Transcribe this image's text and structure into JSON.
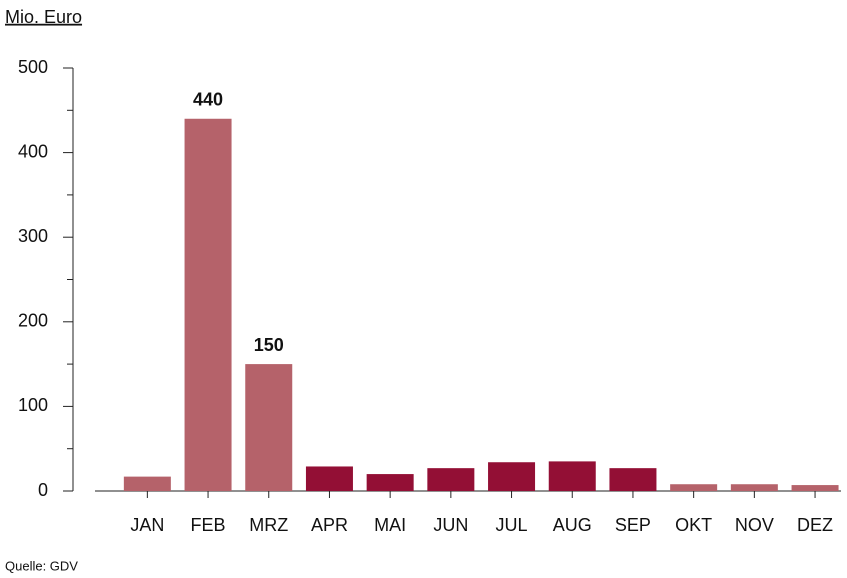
{
  "chart_data": {
    "type": "bar",
    "y_axis_label": "Mio. Euro",
    "source": "Quelle: GDV",
    "categories": [
      "JAN",
      "FEB",
      "MRZ",
      "APR",
      "MAI",
      "JUN",
      "JUL",
      "AUG",
      "SEP",
      "OKT",
      "NOV",
      "DEZ"
    ],
    "values": [
      17,
      440,
      150,
      29,
      20,
      27,
      34,
      35,
      27,
      8,
      8,
      7
    ],
    "value_labels": [
      null,
      "440",
      "150",
      null,
      null,
      null,
      null,
      null,
      null,
      null,
      null,
      null
    ],
    "colors": [
      "#b5626a",
      "#b5626a",
      "#b5626a",
      "#930f35",
      "#930f35",
      "#930f35",
      "#930f35",
      "#930f35",
      "#930f35",
      "#b5626a",
      "#b5626a",
      "#b5626a"
    ],
    "ylim": [
      0,
      500
    ],
    "yticks": [
      0,
      100,
      200,
      300,
      400,
      500
    ],
    "minor_yticks": [
      50,
      150,
      250,
      350,
      450
    ]
  }
}
